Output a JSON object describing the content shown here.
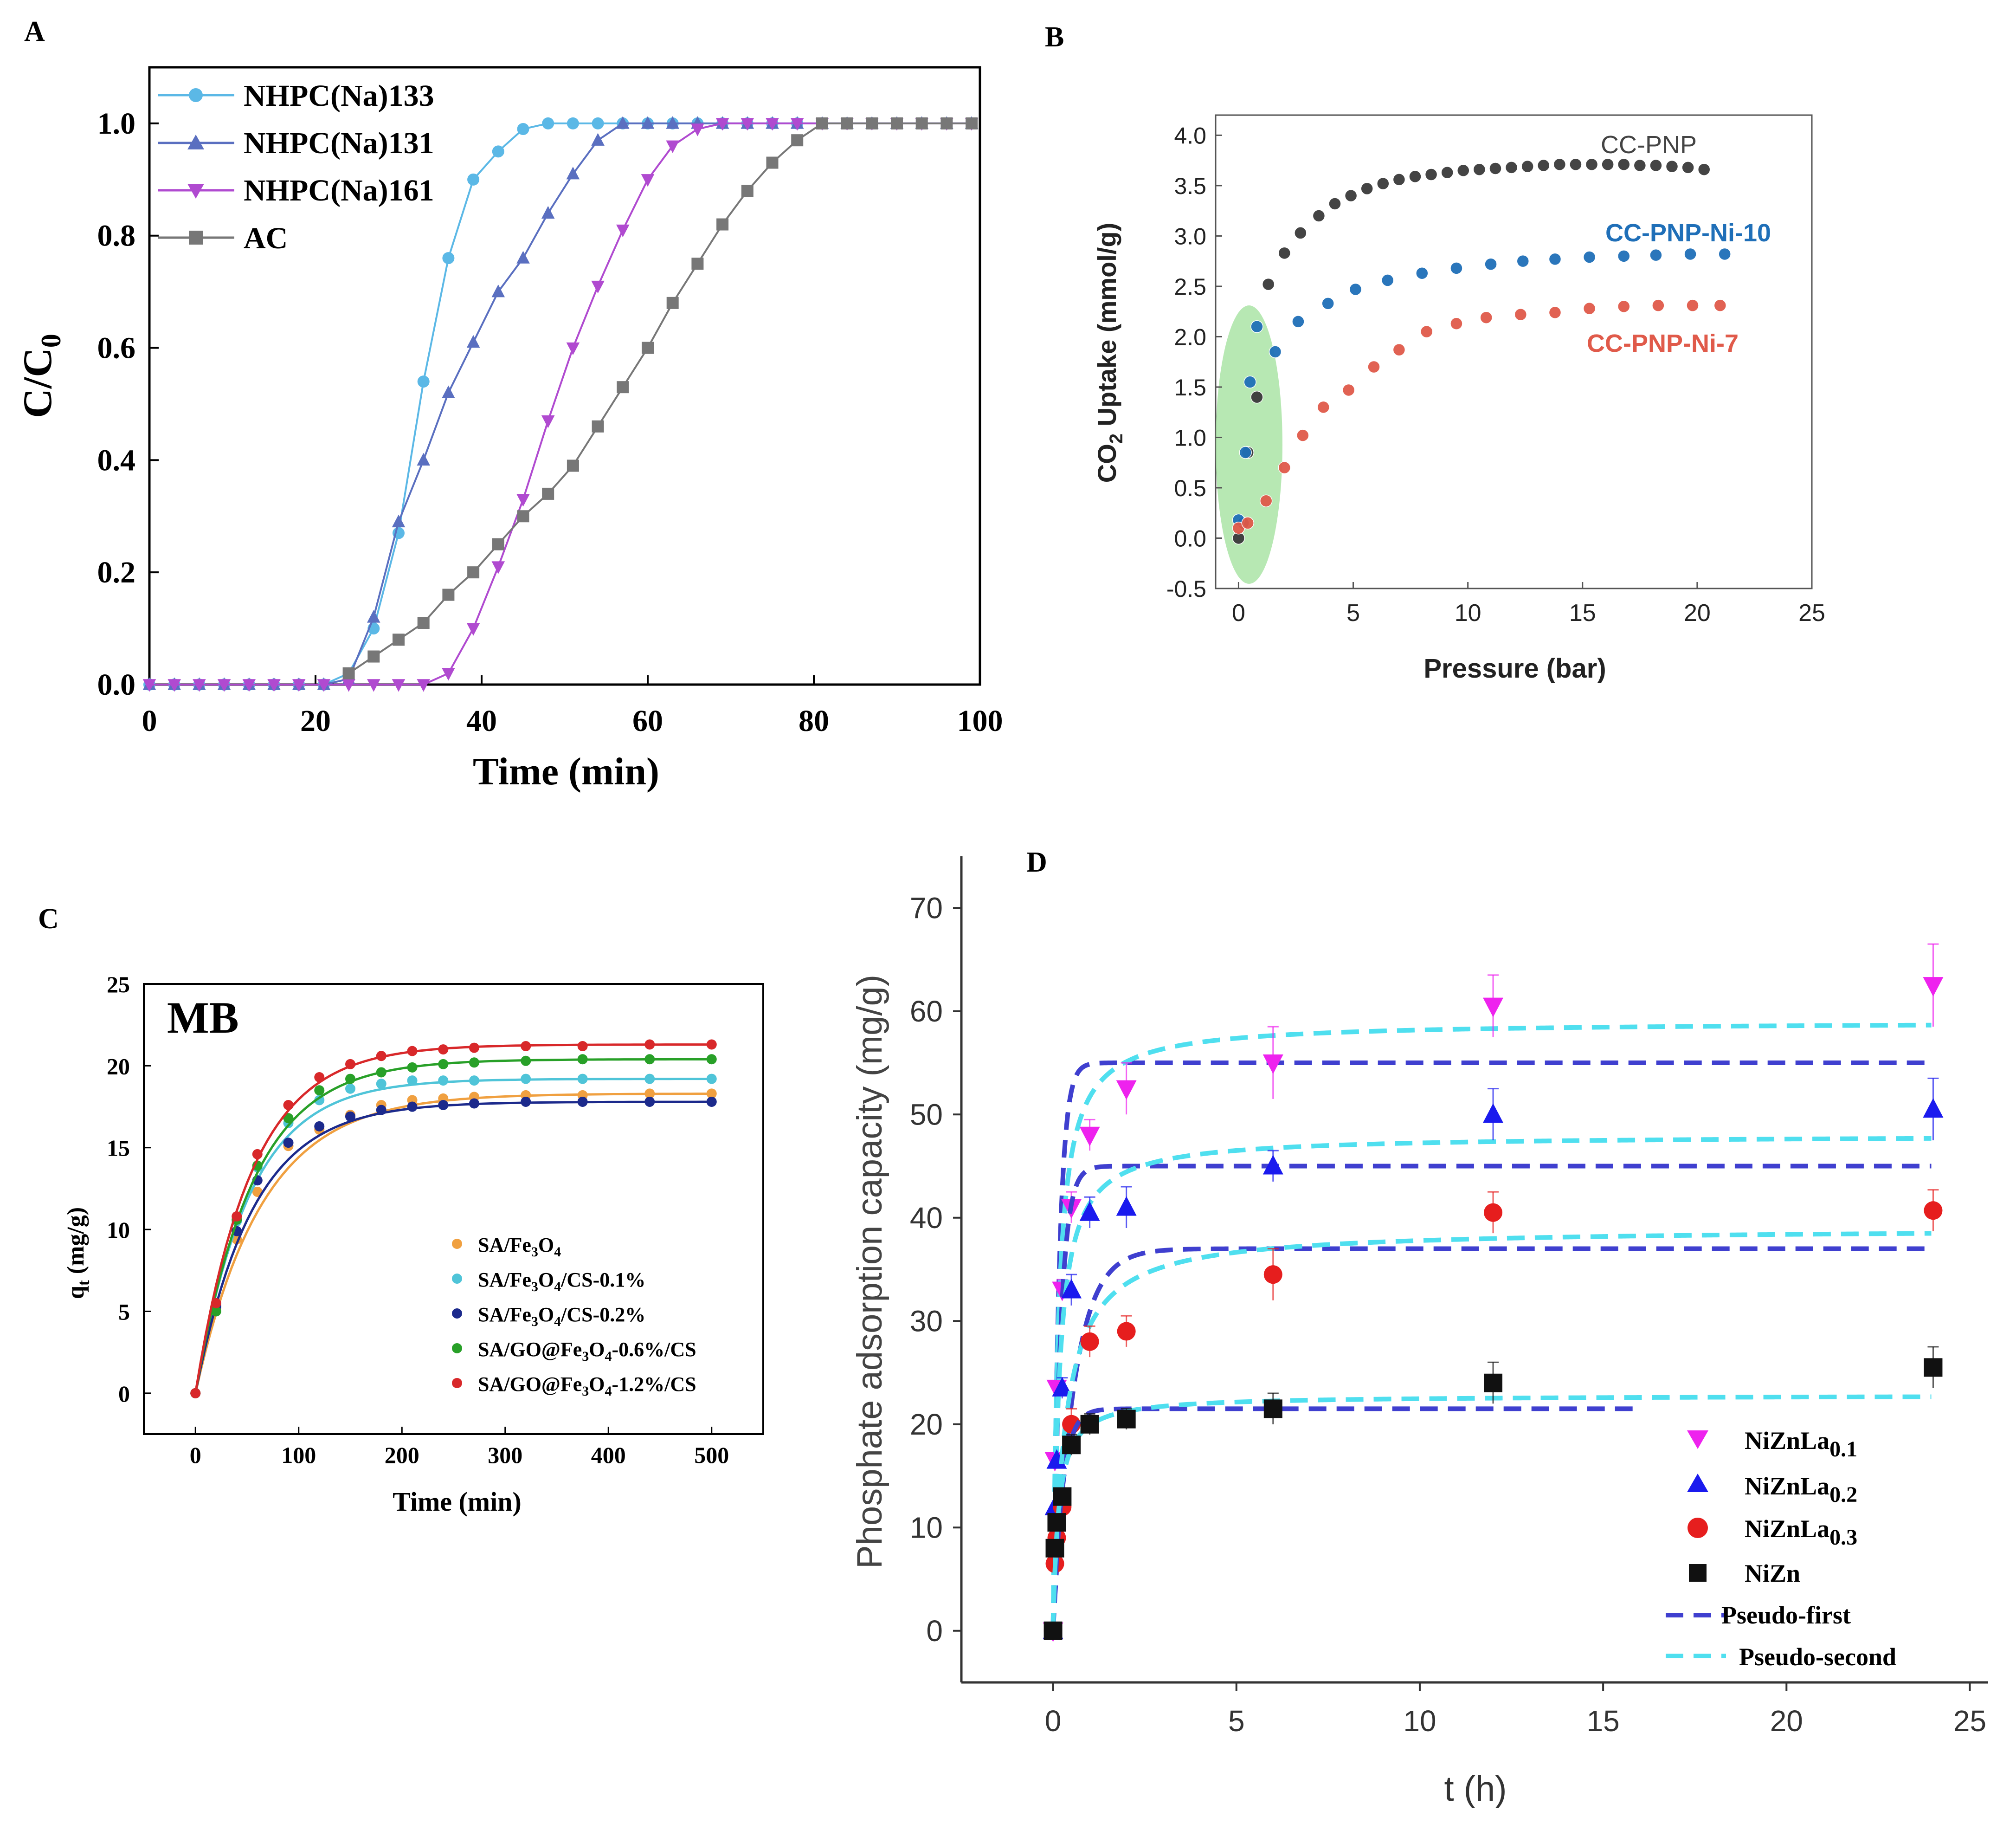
{
  "chart_data": [
    {
      "panel": "A",
      "type": "line",
      "xlabel": "Time (min)",
      "ylabel": "C/C",
      "ylabel_sub": "0",
      "xlim": [
        0,
        100
      ],
      "ylim": [
        0,
        1.1
      ],
      "xticks": [
        "0",
        "20",
        "40",
        "60",
        "80",
        "100"
      ],
      "yticks": [
        "0.0",
        "0.2",
        "0.4",
        "0.6",
        "0.8",
        "1.0"
      ],
      "legend": "top-left",
      "series": [
        {
          "name": "NHPC(Na)133",
          "color": "#5bb8e6",
          "marker": "circle",
          "x": [
            0,
            3,
            6,
            9,
            12,
            15,
            18,
            21,
            24,
            27,
            30,
            33,
            36,
            39,
            42,
            45,
            48,
            51,
            54,
            57,
            60,
            63,
            66,
            69,
            72,
            75,
            78,
            81,
            84,
            87,
            90,
            93,
            96,
            99
          ],
          "y": [
            0,
            0,
            0,
            0,
            0,
            0,
            0,
            0,
            0.02,
            0.1,
            0.27,
            0.54,
            0.76,
            0.9,
            0.95,
            0.99,
            1.0,
            1.0,
            1.0,
            1.0,
            1.0,
            1.0,
            1.0,
            1.0,
            1.0,
            1.0,
            1.0,
            1.0,
            1.0,
            1.0,
            1.0,
            1.0,
            1.0,
            1.0
          ]
        },
        {
          "name": "NHPC(Na)131",
          "color": "#5a6fc0",
          "marker": "triangle-up",
          "x": [
            0,
            3,
            6,
            9,
            12,
            15,
            18,
            21,
            24,
            27,
            30,
            33,
            36,
            39,
            42,
            45,
            48,
            51,
            54,
            57,
            60,
            63,
            66,
            69,
            72,
            75,
            78,
            81,
            84,
            87,
            90,
            93,
            96,
            99
          ],
          "y": [
            0,
            0,
            0,
            0,
            0,
            0,
            0,
            0,
            0.01,
            0.12,
            0.29,
            0.4,
            0.52,
            0.61,
            0.7,
            0.76,
            0.84,
            0.91,
            0.97,
            1.0,
            1.0,
            1.0,
            1.0,
            1.0,
            1.0,
            1.0,
            1.0,
            1.0,
            1.0,
            1.0,
            1.0,
            1.0,
            1.0,
            1.0
          ]
        },
        {
          "name": "NHPC(Na)161",
          "color": "#b04ad0",
          "marker": "triangle-down",
          "x": [
            0,
            3,
            6,
            9,
            12,
            15,
            18,
            21,
            24,
            27,
            30,
            33,
            36,
            39,
            42,
            45,
            48,
            51,
            54,
            57,
            60,
            63,
            66,
            69,
            72,
            75,
            78,
            81,
            84,
            87,
            90,
            93,
            96,
            99
          ],
          "y": [
            0,
            0,
            0,
            0,
            0,
            0,
            0,
            0,
            0,
            0,
            0,
            0,
            0.02,
            0.1,
            0.21,
            0.33,
            0.47,
            0.6,
            0.71,
            0.81,
            0.9,
            0.96,
            0.99,
            1.0,
            1.0,
            1.0,
            1.0,
            1.0,
            1.0,
            1.0,
            1.0,
            1.0,
            1.0,
            1.0
          ]
        },
        {
          "name": "AC",
          "color": "#777777",
          "marker": "square",
          "x": [
            24,
            27,
            30,
            33,
            36,
            39,
            42,
            45,
            48,
            51,
            54,
            57,
            60,
            63,
            66,
            69,
            72,
            75,
            78,
            81,
            84,
            87,
            90,
            93,
            96,
            99
          ],
          "y": [
            0.02,
            0.05,
            0.08,
            0.11,
            0.16,
            0.2,
            0.25,
            0.3,
            0.34,
            0.39,
            0.46,
            0.53,
            0.6,
            0.68,
            0.75,
            0.82,
            0.88,
            0.93,
            0.97,
            1.0,
            1.0,
            1.0,
            1.0,
            1.0,
            1.0,
            1.0
          ]
        }
      ]
    },
    {
      "panel": "B",
      "type": "scatter",
      "xlabel": "Pressure (bar)",
      "ylabel": "CO",
      "ylabel_sub": "2",
      "ylabel_rest": " Uptake (mmol/g)",
      "xlim": [
        -1,
        25
      ],
      "ylim": [
        -0.5,
        4.2
      ],
      "xticks": [
        "0",
        "5",
        "10",
        "15",
        "20",
        "25"
      ],
      "yticks": [
        "-0.5",
        "0.0",
        "0.5",
        "1.0",
        "1.5",
        "2.0",
        "2.5",
        "3.0",
        "3.5",
        "4.0"
      ],
      "series": [
        {
          "name": "CC-PNP",
          "color": "#3a3a3a",
          "x": [
            0,
            0.2,
            0.4,
            0.8,
            1.3,
            2.0,
            2.7,
            3.5,
            4.2,
            4.9,
            5.6,
            6.3,
            7.0,
            7.7,
            8.4,
            9.1,
            9.8,
            10.5,
            11.2,
            11.9,
            12.6,
            13.3,
            14.0,
            14.7,
            15.4,
            16.1,
            16.8,
            17.5,
            18.2,
            18.9,
            19.6,
            20.3
          ],
          "y": [
            0,
            0.15,
            0.85,
            1.4,
            2.52,
            2.83,
            3.03,
            3.2,
            3.32,
            3.4,
            3.47,
            3.52,
            3.56,
            3.59,
            3.61,
            3.63,
            3.65,
            3.66,
            3.67,
            3.68,
            3.69,
            3.7,
            3.71,
            3.71,
            3.71,
            3.71,
            3.71,
            3.7,
            3.7,
            3.69,
            3.68,
            3.66
          ]
        },
        {
          "name": "CC-PNP-Ni-10",
          "color": "#1f6fb8",
          "x": [
            0,
            0.3,
            0.5,
            0.8,
            1.6,
            2.6,
            3.9,
            5.1,
            6.5,
            8.0,
            9.5,
            11.0,
            12.4,
            13.8,
            15.3,
            16.8,
            18.2,
            19.7,
            21.2
          ],
          "y": [
            0.18,
            0.85,
            1.55,
            2.1,
            1.85,
            2.15,
            2.33,
            2.47,
            2.56,
            2.63,
            2.68,
            2.72,
            2.75,
            2.77,
            2.79,
            2.8,
            2.81,
            2.82,
            2.82
          ]
        },
        {
          "name": "CC-PNP-Ni-7",
          "color": "#e05a4a",
          "x": [
            0,
            0.4,
            1.2,
            2.0,
            2.8,
            3.7,
            4.8,
            5.9,
            7.0,
            8.2,
            9.5,
            10.8,
            12.3,
            13.8,
            15.3,
            16.8,
            18.3,
            19.8,
            21.0
          ],
          "y": [
            0.1,
            0.15,
            0.37,
            0.7,
            1.02,
            1.3,
            1.47,
            1.7,
            1.87,
            2.05,
            2.13,
            2.19,
            2.22,
            2.24,
            2.28,
            2.3,
            2.31,
            2.31,
            2.31
          ]
        }
      ]
    },
    {
      "panel": "C",
      "type": "line",
      "title": "MB",
      "xlabel": "Time (min)",
      "ylabel": "q",
      "ylabel_sub": "t",
      "ylabel_rest": " (mg/g)",
      "xlim": [
        -50,
        550
      ],
      "ylim": [
        -2.5,
        25
      ],
      "xticks": [
        "0",
        "100",
        "200",
        "300",
        "400",
        "500"
      ],
      "yticks": [
        "0",
        "5",
        "10",
        "15",
        "20",
        "25"
      ],
      "legend": "bottom-right",
      "series": [
        {
          "name": "SA/Fe₃O₄",
          "color": "#f0a040",
          "qe": 18.3,
          "k": 0.0155,
          "x": [
            0,
            20,
            40,
            60,
            90,
            120,
            150,
            180,
            210,
            240,
            270,
            320,
            375,
            440,
            500
          ],
          "y": [
            0,
            5.2,
            9.4,
            12.3,
            15.1,
            16.1,
            17.0,
            17.6,
            17.9,
            18.0,
            18.1,
            18.2,
            18.2,
            18.3,
            18.3
          ]
        },
        {
          "name": "SA/Fe₃O₄/CS-0.1%",
          "color": "#4fc4d8",
          "qe": 19.2,
          "k": 0.019,
          "x": [
            0,
            20,
            40,
            60,
            90,
            120,
            150,
            180,
            210,
            240,
            270,
            320,
            375,
            440,
            500
          ],
          "y": [
            0,
            5.4,
            10.5,
            13.8,
            16.5,
            17.9,
            18.6,
            18.9,
            19.1,
            19.1,
            19.1,
            19.2,
            19.2,
            19.2,
            19.2
          ]
        },
        {
          "name": "SA/Fe₃O₄/CS-0.2%",
          "color": "#1c2a8c",
          "qe": 17.8,
          "k": 0.018,
          "x": [
            0,
            20,
            40,
            60,
            90,
            120,
            150,
            180,
            210,
            240,
            270,
            320,
            375,
            440,
            500
          ],
          "y": [
            0,
            5.3,
            9.9,
            13.0,
            15.3,
            16.3,
            16.9,
            17.3,
            17.5,
            17.6,
            17.7,
            17.8,
            17.8,
            17.8,
            17.8
          ]
        },
        {
          "name": "SA/GO@Fe₃O₄-0.6%/CS",
          "color": "#28a028",
          "qe": 20.4,
          "k": 0.018,
          "x": [
            0,
            20,
            40,
            60,
            90,
            120,
            150,
            180,
            210,
            240,
            270,
            320,
            375,
            440,
            500
          ],
          "y": [
            0,
            5.0,
            10.6,
            13.9,
            16.8,
            18.5,
            19.2,
            19.6,
            19.9,
            20.1,
            20.2,
            20.3,
            20.4,
            20.4,
            20.4
          ]
        },
        {
          "name": "SA/GO@Fe₃O₄-1.2%/CS",
          "color": "#d8282a",
          "qe": 21.3,
          "k": 0.0185,
          "x": [
            0,
            20,
            40,
            60,
            90,
            120,
            150,
            180,
            210,
            240,
            270,
            320,
            375,
            440,
            500
          ],
          "y": [
            0,
            5.5,
            10.8,
            14.6,
            17.6,
            19.3,
            20.1,
            20.6,
            20.9,
            21.0,
            21.1,
            21.2,
            21.2,
            21.3,
            21.3
          ]
        }
      ]
    },
    {
      "panel": "D",
      "type": "scatter",
      "xlabel": "t (h)",
      "ylabel": "Phosphate adsorption capacity (mg/g)",
      "xlim": [
        -2.5,
        25.5
      ],
      "ylim": [
        -5,
        75
      ],
      "xticks": [
        "0",
        "5",
        "10",
        "15",
        "20",
        "25"
      ],
      "yticks": [
        "0",
        "10",
        "20",
        "30",
        "40",
        "50",
        "60",
        "70"
      ],
      "legend": "bottom-right",
      "series": [
        {
          "name": "NiZnLa",
          "name_sub": "0.1",
          "color": "#ee22ee",
          "marker": "triangle-down",
          "x": [
            0,
            0.05,
            0.1,
            0.25,
            0.5,
            1,
            2,
            6,
            12,
            24
          ],
          "y": [
            0,
            16.5,
            23.5,
            33,
            41,
            48,
            52.5,
            55,
            60.5,
            62.5
          ],
          "err": [
            0,
            0,
            0,
            1,
            1.5,
            1.5,
            2.5,
            3.5,
            3,
            4
          ],
          "fit1_qe": 55,
          "fit1_k": 6,
          "fit2_qe": 59,
          "fit2_k": 0.12
        },
        {
          "name": "NiZnLa",
          "name_sub": "0.2",
          "color": "#1a1aee",
          "marker": "triangle-up",
          "x": [
            0,
            0.05,
            0.1,
            0.25,
            0.5,
            1,
            2,
            6,
            12,
            24
          ],
          "y": [
            0,
            12,
            16.5,
            23.5,
            33,
            40.5,
            41,
            45,
            50,
            50.5
          ],
          "err": [
            0,
            0,
            0,
            1,
            1.5,
            1.5,
            2,
            1.5,
            2.5,
            3
          ],
          "fit1_qe": 45,
          "fit1_k": 5,
          "fit2_qe": 48,
          "fit2_k": 0.13
        },
        {
          "name": "NiZnLa",
          "name_sub": "0.3",
          "color": "#e61e1e",
          "marker": "circle",
          "x": [
            0,
            0.05,
            0.1,
            0.25,
            0.5,
            1,
            2,
            6,
            12,
            24
          ],
          "y": [
            0,
            6.5,
            9,
            12,
            20,
            28,
            29,
            34.5,
            40.5,
            40.7
          ],
          "err": [
            0,
            0,
            0,
            1,
            1.5,
            1.5,
            1.5,
            2.5,
            2,
            2
          ],
          "fit1_qe": 37,
          "fit1_k": 1.8,
          "fit2_qe": 39,
          "fit2_k": 0.08
        },
        {
          "name": "NiZn",
          "name_sub": "",
          "color": "#111111",
          "marker": "square",
          "x": [
            0,
            0.05,
            0.1,
            0.25,
            0.5,
            1,
            2,
            6,
            12,
            24
          ],
          "y": [
            0,
            8,
            10.5,
            13,
            18,
            20,
            20.5,
            21.5,
            24,
            25.5
          ],
          "err": [
            0,
            0,
            0,
            0.8,
            1,
            1,
            1,
            1.5,
            2,
            2
          ],
          "fit1_qe": 21.5,
          "fit1_k": 4,
          "fit2_qe": 22.8,
          "fit2_k": 0.3
        }
      ],
      "fit_legend": [
        {
          "name": "Pseudo-first",
          "color": "#3f3fcf"
        },
        {
          "name": "Pseudo-second",
          "color": "#4fdfef"
        }
      ]
    }
  ],
  "panel_labels": {
    "a": "A",
    "b": "B",
    "c": "C",
    "d": "D"
  },
  "legend_a": {
    "l1": "NHPC(Na)133",
    "l2": "NHPC(Na)131",
    "l3": "NHPC(Na)161",
    "l4": "AC"
  },
  "legend_b": {
    "l1": "CC-PNP",
    "l2": "CC-PNP-Ni-10",
    "l3": "CC-PNP-Ni-7"
  },
  "legend_c": {
    "l1a": "SA/Fe",
    "l1b": "3",
    "l1c": "O",
    "l1d": "4",
    "l2a": "SA/Fe",
    "l2b": "3",
    "l2c": "O",
    "l2d": "4",
    "l2e": "/CS-0.1%",
    "l3a": "SA/Fe",
    "l3b": "3",
    "l3c": "O",
    "l3d": "4",
    "l3e": "/CS-0.2%",
    "l4a": "SA/GO@Fe",
    "l4b": "3",
    "l4c": "O",
    "l4d": "4",
    "l4e": "-0.6%/CS",
    "l5a": "SA/GO@Fe",
    "l5b": "3",
    "l5c": "O",
    "l5d": "4",
    "l5e": "-1.2%/CS"
  },
  "legend_d": {
    "l1": "NiZnLa",
    "l1s": "0.1",
    "l2": "NiZnLa",
    "l2s": "0.2",
    "l3": "NiZnLa",
    "l3s": "0.3",
    "l4": "NiZn",
    "l5": "Pseudo-first",
    "l6": "Pseudo-second"
  }
}
